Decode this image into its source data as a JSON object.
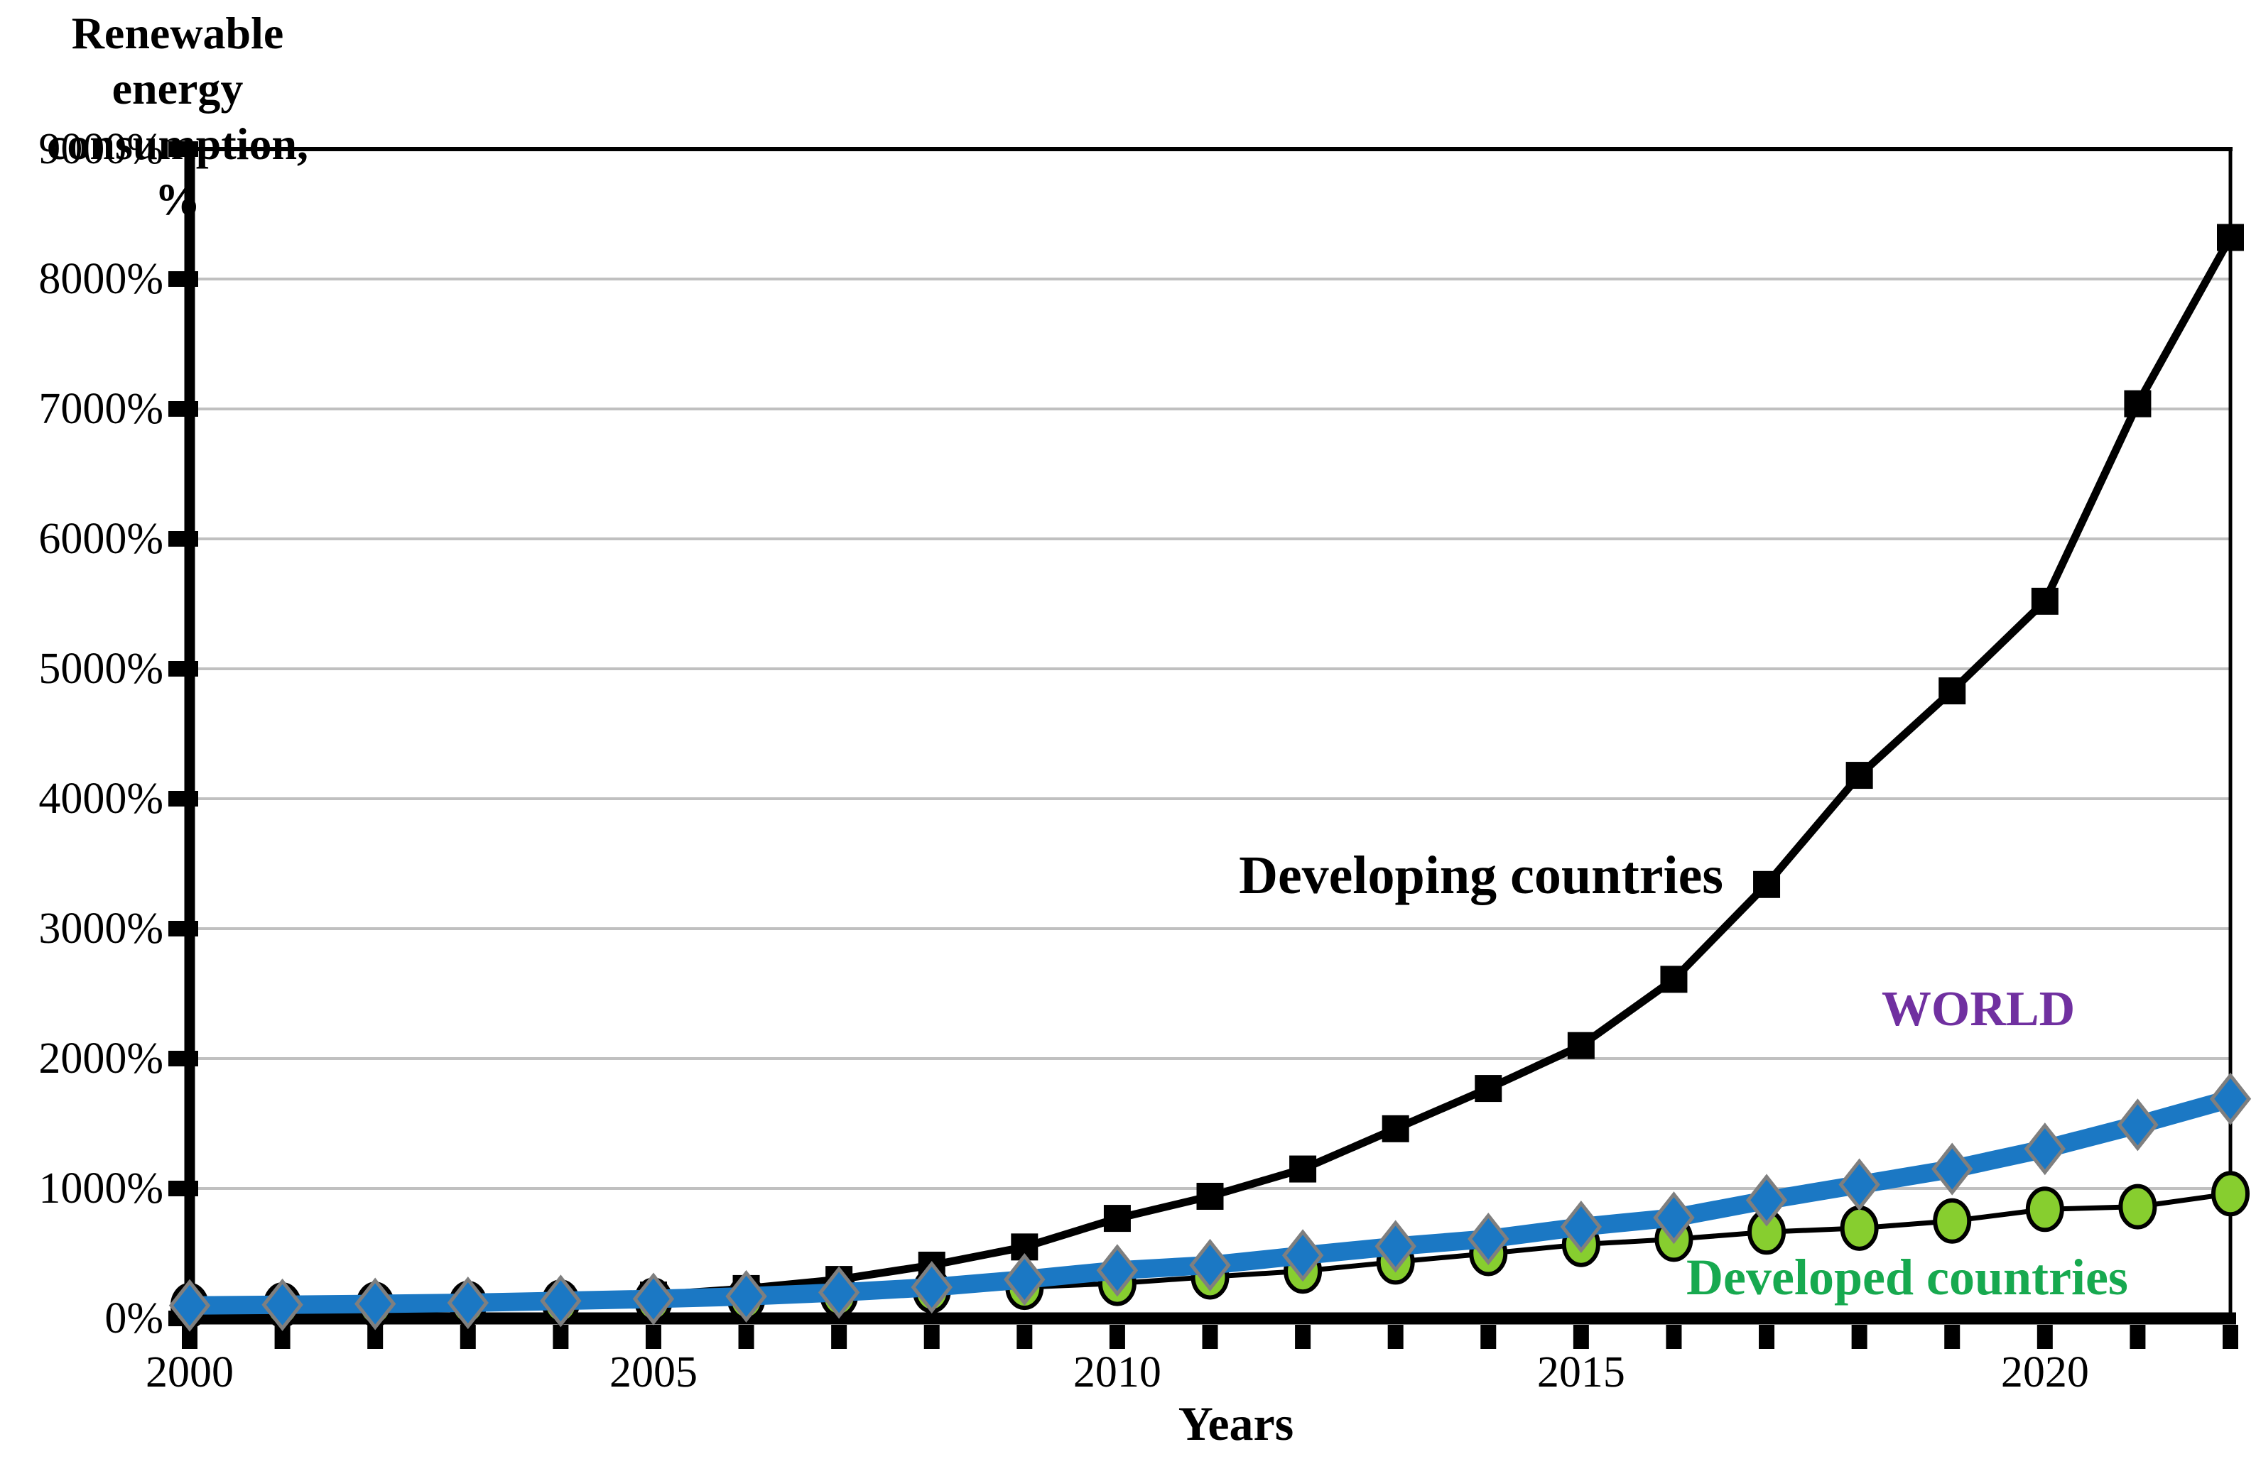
{
  "y_axis_title_line1": "Renewable energy",
  "y_axis_title_line2": "consumption, %",
  "x_axis_title": "Years",
  "annotations": {
    "developing_label": "Developing countries",
    "world_label": "WORLD",
    "developed_label": "Developed countries"
  },
  "colors": {
    "world_line": "#1B78C4",
    "world_marker_stroke": "#7F7F7F",
    "world_label_text": "#7030A0",
    "developed_marker_fill": "#87CE2F",
    "developed_label_text": "#17A94F",
    "developing_line": "#000000",
    "gridline": "#C0C0C0",
    "axis": "#000000"
  },
  "chart_data": {
    "type": "line",
    "title": "",
    "xlabel": "Years",
    "ylabel": "Renewable energy consumption, %",
    "x": [
      2000,
      2001,
      2002,
      2003,
      2004,
      2005,
      2006,
      2007,
      2008,
      2009,
      2010,
      2011,
      2012,
      2013,
      2014,
      2015,
      2016,
      2017,
      2018,
      2019,
      2020,
      2021,
      2022
    ],
    "series": [
      {
        "name": "Developing countries",
        "marker": "square",
        "values": [
          100,
          105,
          115,
          130,
          150,
          180,
          230,
          300,
          410,
          550,
          770,
          940,
          1150,
          1460,
          1770,
          2100,
          2610,
          3340,
          4180,
          4830,
          5520,
          7040,
          8320
        ]
      },
      {
        "name": "WORLD",
        "marker": "diamond",
        "values": [
          100,
          105,
          112,
          120,
          135,
          150,
          170,
          200,
          240,
          300,
          370,
          410,
          485,
          555,
          612,
          705,
          775,
          910,
          1030,
          1150,
          1305,
          1490,
          1690
        ]
      },
      {
        "name": "Developed countries",
        "marker": "circle",
        "values": [
          100,
          103,
          108,
          115,
          125,
          140,
          155,
          180,
          215,
          240,
          270,
          320,
          365,
          435,
          500,
          570,
          610,
          665,
          695,
          750,
          840,
          860,
          960
        ]
      }
    ],
    "ylim": [
      0,
      9000
    ],
    "xlim": [
      2000,
      2022
    ],
    "y_tick_step": 1000,
    "y_tick_labels": [
      "0%",
      "1000%",
      "2000%",
      "3000%",
      "4000%",
      "5000%",
      "6000%",
      "7000%",
      "8000%",
      "9000%"
    ],
    "x_tick_labels": [
      "2000",
      "2005",
      "2010",
      "2015",
      "2020"
    ],
    "x_tick_label_years": [
      2000,
      2005,
      2010,
      2015,
      2020
    ],
    "grid": "horizontal-major",
    "legend_position": "inline-annotations"
  }
}
